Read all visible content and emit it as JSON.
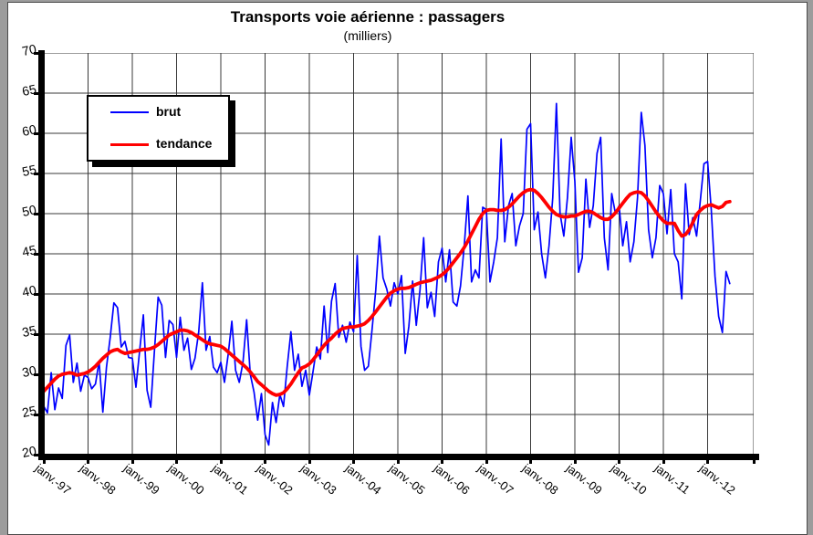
{
  "page": {
    "background_color": "#9c9c9c",
    "chart_background_color": "#ffffff"
  },
  "chart_data": {
    "type": "line",
    "title": "Transports voie aérienne : passagers",
    "subtitle": "(milliers)",
    "unit": "milliers de passagers",
    "grid": true,
    "ylim": [
      20,
      70
    ],
    "y_tick_step": 5,
    "y_tick_labels": [
      "70",
      "65",
      "60",
      "55",
      "50",
      "45",
      "40",
      "35",
      "30",
      "25",
      "20"
    ],
    "x_tick_labels": [
      "janv.-97",
      "janv.-98",
      "janv.-99",
      "janv.-00",
      "janv.-01",
      "janv.-02",
      "janv.-03",
      "janv.-04",
      "janv.-05",
      "janv.-06",
      "janv.-07",
      "janv.-08",
      "janv.-09",
      "janv.-10",
      "janv.-11",
      "janv.-12"
    ],
    "x_months_per_tick": 12,
    "x_start": "janv.-97",
    "x_end_of_data": "mi-2012",
    "legend": {
      "position": "upper-left",
      "entries": [
        "brut",
        "tendance"
      ]
    },
    "series": [
      {
        "name": "brut",
        "color": "#0000ff",
        "line_width": 1.7,
        "values": [
          26.0,
          25.2,
          30.2,
          25.6,
          28.3,
          27.0,
          33.6,
          34.9,
          29.0,
          31.4,
          27.9,
          29.9,
          29.6,
          28.2,
          28.8,
          31.6,
          25.3,
          30.9,
          34.6,
          38.9,
          38.3,
          33.4,
          34.1,
          32.1,
          32.0,
          28.4,
          33.0,
          37.4,
          28.0,
          25.9,
          33.0,
          39.6,
          38.6,
          32.1,
          36.7,
          36.2,
          32.1,
          37.1,
          33.0,
          34.5,
          30.6,
          32.0,
          35.3,
          41.4,
          33.0,
          34.7,
          30.9,
          30.2,
          31.5,
          29.0,
          32.5,
          36.6,
          30.5,
          29.0,
          31.5,
          36.8,
          30.0,
          27.8,
          24.3,
          27.6,
          22.5,
          21.2,
          26.5,
          24.0,
          27.5,
          26.0,
          31.0,
          35.3,
          30.5,
          32.5,
          28.5,
          30.5,
          27.4,
          30.3,
          33.4,
          31.9,
          38.5,
          32.7,
          39.1,
          41.3,
          34.6,
          36.1,
          34.0,
          36.5,
          35.3,
          44.8,
          33.5,
          30.5,
          31.0,
          35.5,
          40.5,
          47.2,
          42.0,
          40.6,
          38.5,
          41.4,
          40.0,
          42.3,
          32.6,
          36.0,
          41.6,
          36.1,
          40.5,
          47.0,
          38.3,
          40.2,
          37.2,
          44.0,
          45.7,
          41.5,
          45.5,
          39.0,
          38.5,
          41.0,
          46.0,
          52.2,
          41.5,
          43.0,
          42.0,
          50.8,
          50.5,
          41.5,
          44.0,
          47.0,
          59.3,
          46.5,
          51.0,
          52.5,
          46.0,
          48.5,
          50.0,
          60.5,
          61.2,
          48.0,
          50.2,
          45.0,
          42.0,
          46.0,
          52.0,
          63.7,
          50.0,
          47.2,
          52.0,
          59.5,
          54.0,
          42.7,
          44.5,
          54.3,
          48.3,
          51.0,
          57.5,
          59.5,
          47.0,
          43.0,
          52.5,
          50.0,
          51.0,
          46.0,
          49.0,
          44.0,
          46.5,
          52.0,
          62.6,
          58.5,
          48.0,
          44.5,
          47.0,
          53.5,
          52.5,
          47.5,
          53.0,
          45.0,
          44.0,
          39.4,
          53.7,
          47.4,
          49.5,
          47.2,
          51.5,
          56.2,
          56.5,
          50.5,
          42.2,
          37.2,
          35.2,
          42.8,
          41.3
        ]
      },
      {
        "name": "tendance",
        "color": "#ff0000",
        "line_width": 3.8,
        "values": [
          27.9,
          28.4,
          28.9,
          29.4,
          29.8,
          30.0,
          30.1,
          30.2,
          30.1,
          29.9,
          30.0,
          30.1,
          30.3,
          30.6,
          31.0,
          31.5,
          32.0,
          32.4,
          32.8,
          33.0,
          33.1,
          32.8,
          32.6,
          32.7,
          32.8,
          32.9,
          33.0,
          33.1,
          33.1,
          33.2,
          33.4,
          33.7,
          34.1,
          34.5,
          34.9,
          35.1,
          35.3,
          35.5,
          35.5,
          35.4,
          35.2,
          34.9,
          34.6,
          34.3,
          34.0,
          33.8,
          33.7,
          33.6,
          33.5,
          33.2,
          32.8,
          32.4,
          32.0,
          31.6,
          31.2,
          30.8,
          30.3,
          29.7,
          29.1,
          28.7,
          28.3,
          27.9,
          27.6,
          27.4,
          27.5,
          27.7,
          28.2,
          28.8,
          29.5,
          30.2,
          30.8,
          31.0,
          31.3,
          31.8,
          32.4,
          33.0,
          33.6,
          34.1,
          34.5,
          35.0,
          35.4,
          35.7,
          35.8,
          35.9,
          35.9,
          36.0,
          36.1,
          36.3,
          36.7,
          37.2,
          37.8,
          38.4,
          39.0,
          39.6,
          40.1,
          40.4,
          40.6,
          40.7,
          40.7,
          40.8,
          41.0,
          41.2,
          41.4,
          41.5,
          41.6,
          41.7,
          41.9,
          42.1,
          42.4,
          42.8,
          43.3,
          43.9,
          44.5,
          45.1,
          45.8,
          46.6,
          47.5,
          48.4,
          49.3,
          50.0,
          50.4,
          50.5,
          50.5,
          50.4,
          50.4,
          50.5,
          50.8,
          51.2,
          51.7,
          52.2,
          52.6,
          52.9,
          53.0,
          52.9,
          52.5,
          52.0,
          51.4,
          50.8,
          50.3,
          49.9,
          49.7,
          49.6,
          49.6,
          49.7,
          49.7,
          49.9,
          50.1,
          50.3,
          50.3,
          50.1,
          49.8,
          49.5,
          49.3,
          49.3,
          49.6,
          50.1,
          50.7,
          51.3,
          51.9,
          52.4,
          52.6,
          52.7,
          52.6,
          52.2,
          51.6,
          50.9,
          50.2,
          49.6,
          49.1,
          48.8,
          48.8,
          48.8,
          47.9,
          47.2,
          47.4,
          48.0,
          48.9,
          49.9,
          50.4,
          50.8,
          51.0,
          51.1,
          50.9,
          50.7,
          50.9,
          51.4,
          51.5
        ]
      }
    ]
  }
}
